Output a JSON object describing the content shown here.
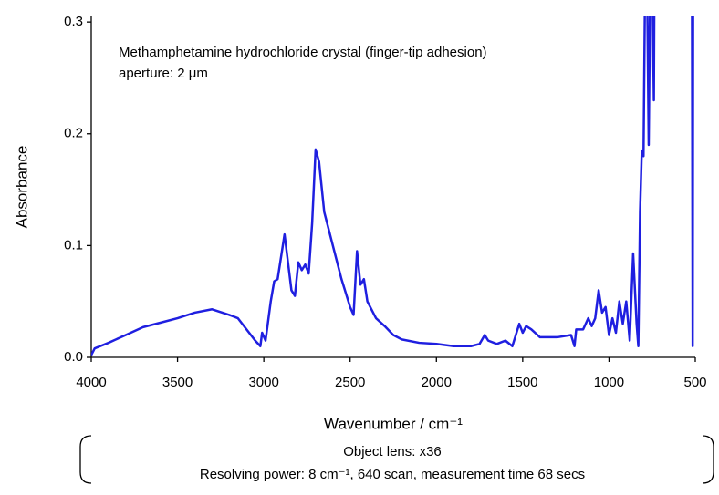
{
  "chart_data": {
    "type": "line",
    "annotations": [
      "Methamphetamine hydrochloride crystal (finger-tip adhesion)",
      "aperture: 2 μm"
    ],
    "x_label": "Wavenumber / cm⁻¹",
    "y_label": "Absorbance",
    "notes": [
      "Object lens: x36",
      "Resolving power: 8 cm⁻¹, 640 scan, measurement time 68 secs"
    ],
    "xlim": [
      4000,
      500
    ],
    "xticks": [
      4000,
      3500,
      3000,
      2500,
      2000,
      1500,
      1000,
      500
    ],
    "ylim": [
      0,
      0.305
    ],
    "yticks": [
      {
        "value": 0,
        "label": "0.0"
      },
      0.1,
      0.2,
      0.3
    ],
    "series": [
      {
        "color": "#1f1fe0",
        "x": [
          4000,
          3980,
          3900,
          3800,
          3700,
          3600,
          3500,
          3400,
          3300,
          3200,
          3150,
          3100,
          3050,
          3020,
          3010,
          2990,
          2960,
          2940,
          2920,
          2900,
          2880,
          2860,
          2840,
          2820,
          2800,
          2780,
          2760,
          2740,
          2720,
          2700,
          2680,
          2650,
          2600,
          2550,
          2500,
          2480,
          2460,
          2440,
          2420,
          2400,
          2350,
          2300,
          2250,
          2200,
          2100,
          2000,
          1900,
          1800,
          1750,
          1720,
          1700,
          1650,
          1600,
          1560,
          1520,
          1500,
          1480,
          1450,
          1400,
          1300,
          1220,
          1200,
          1190,
          1150,
          1120,
          1100,
          1080,
          1060,
          1040,
          1020,
          1000,
          980,
          960,
          940,
          920,
          900,
          880,
          860,
          840,
          830,
          820,
          810,
          800,
          790,
          780,
          770,
          760,
          750,
          740,
          735,
          520,
          515,
          512
        ],
        "values": [
          0.002,
          0.008,
          0.013,
          0.02,
          0.027,
          0.031,
          0.035,
          0.04,
          0.043,
          0.038,
          0.035,
          0.025,
          0.015,
          0.01,
          0.022,
          0.015,
          0.05,
          0.068,
          0.07,
          0.09,
          0.11,
          0.085,
          0.06,
          0.055,
          0.085,
          0.078,
          0.083,
          0.075,
          0.12,
          0.186,
          0.175,
          0.13,
          0.1,
          0.07,
          0.045,
          0.038,
          0.095,
          0.065,
          0.07,
          0.05,
          0.035,
          0.028,
          0.02,
          0.016,
          0.013,
          0.012,
          0.01,
          0.01,
          0.012,
          0.02,
          0.015,
          0.012,
          0.015,
          0.01,
          0.03,
          0.022,
          0.028,
          0.025,
          0.018,
          0.018,
          0.02,
          0.01,
          0.025,
          0.025,
          0.035,
          0.028,
          0.035,
          0.06,
          0.04,
          0.045,
          0.02,
          0.035,
          0.022,
          0.05,
          0.03,
          0.05,
          0.015,
          0.093,
          0.03,
          0.01,
          0.13,
          0.185,
          0.18,
          0.35,
          0.35,
          0.19,
          0.35,
          0.35,
          0.23,
          0.4,
          0.4,
          0.01,
          0.4
        ]
      }
    ]
  }
}
